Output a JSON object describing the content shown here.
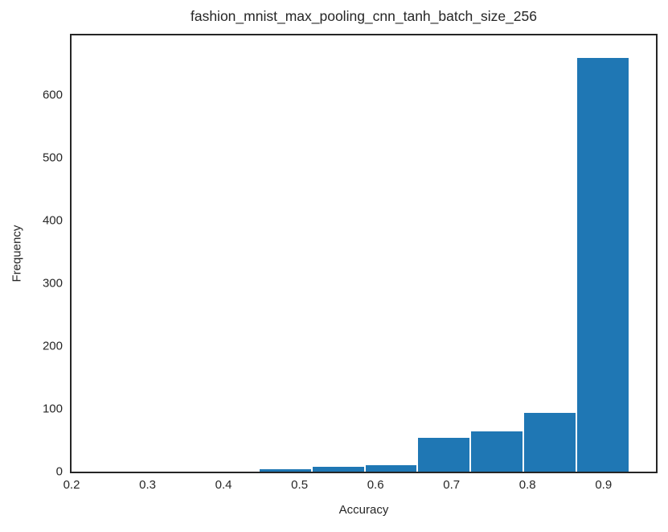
{
  "chart_data": {
    "type": "bar",
    "subtype": "histogram",
    "title": "fashion_mnist_max_pooling_cnn_tanh_batch_size_256",
    "xlabel": "Accuracy",
    "ylabel": "Frequency",
    "bar_color": "#1f77b4",
    "bar_edge_color": "#ffffff",
    "spine_color": "#262626",
    "text_color": "#262626",
    "background_color": "#ffffff",
    "grid": false,
    "legend": null,
    "xlim": [
      0.2,
      0.969
    ],
    "ylim": [
      0,
      695
    ],
    "xticks": [
      0.2,
      0.3,
      0.4,
      0.5,
      0.6,
      0.7,
      0.8,
      0.9
    ],
    "yticks": [
      0,
      100,
      200,
      300,
      400,
      500,
      600
    ],
    "bins": [
      {
        "x0": 0.4463,
        "x1": 0.516,
        "count": 5
      },
      {
        "x0": 0.516,
        "x1": 0.5856,
        "count": 9
      },
      {
        "x0": 0.5856,
        "x1": 0.6553,
        "count": 11
      },
      {
        "x0": 0.6553,
        "x1": 0.725,
        "count": 55
      },
      {
        "x0": 0.725,
        "x1": 0.7946,
        "count": 66
      },
      {
        "x0": 0.7946,
        "x1": 0.8643,
        "count": 95
      },
      {
        "x0": 0.8643,
        "x1": 0.934,
        "count": 660
      }
    ]
  }
}
